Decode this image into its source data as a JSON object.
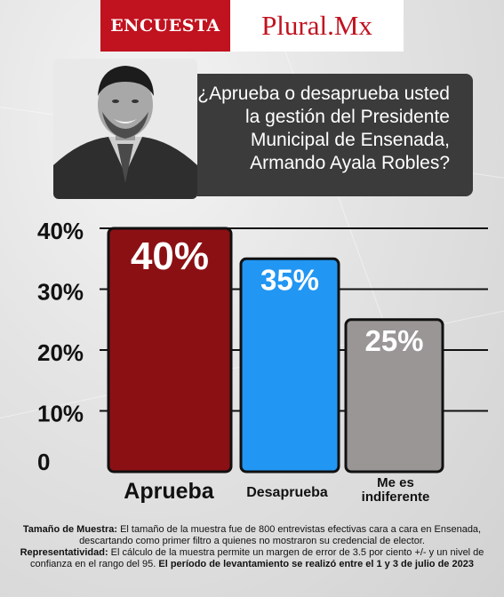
{
  "header": {
    "brand_left": "ENCUESTA",
    "brand_right": "Plural.Mx",
    "accent_color": "#c1121f"
  },
  "question": {
    "text_lines": [
      "¿Aprueba o desaprueba usted",
      "la gestión del Presidente",
      "Municipal de Ensenada,",
      "Armando Ayala Robles?"
    ]
  },
  "portrait": {
    "icon": "person-portrait-icon"
  },
  "chart_data": {
    "type": "bar",
    "categories": [
      "Aprueba",
      "Desaprueba",
      "Me es indiferente"
    ],
    "values": [
      40,
      35,
      25
    ],
    "data_labels": [
      "40%",
      "35%",
      "25%"
    ],
    "colors": [
      "#8b1014",
      "#2196f3",
      "#9a9696"
    ],
    "y_ticks": [
      {
        "value": 40,
        "label": "40%"
      },
      {
        "value": 30,
        "label": "30%"
      },
      {
        "value": 20,
        "label": "20%"
      },
      {
        "value": 10,
        "label": "10%"
      },
      {
        "value": 0,
        "label": "0"
      }
    ],
    "ylim": [
      0,
      40
    ],
    "grid": true,
    "title": "",
    "xlabel": "",
    "ylabel": ""
  },
  "notes": {
    "sample_label": "Tamaño de Muestra:",
    "sample_text": " El tamaño de la muestra fue de 800 entrevistas efectivas cara a cara en Ensenada, descartando como primer filtro a quienes no mostraron su credencial de elector.",
    "rep_label": "Representatividad:",
    "rep_text": " El cálculo de la muestra permite un margen de error de 3.5 por ciento +/- y un nivel de confianza en el rango del 95. ",
    "period_text": "El período de levantamiento se realizó entre el 1 y 3 de julio de 2023"
  }
}
